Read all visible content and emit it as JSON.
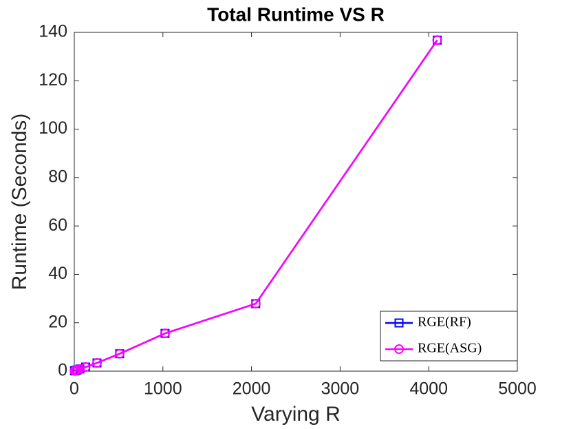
{
  "chart_data": {
    "type": "line",
    "title": "Total Runtime VS R",
    "x_label": "Varying R",
    "y_label": "Runtime (Seconds)",
    "x": [
      2,
      4,
      8,
      16,
      32,
      64,
      128,
      256,
      512,
      1024,
      2048,
      4096
    ],
    "series": [
      {
        "name": "RGE(RF)",
        "color": "#0000ff",
        "marker": "square",
        "values": [
          0.1,
          0.15,
          0.2,
          0.3,
          0.5,
          0.9,
          1.7,
          3.4,
          7.2,
          15.6,
          27.9,
          136.8
        ]
      },
      {
        "name": "RGE(ASG)",
        "color": "#ff00ff",
        "marker": "circle",
        "values": [
          0.1,
          0.15,
          0.2,
          0.3,
          0.5,
          0.9,
          1.7,
          3.4,
          7.2,
          15.6,
          27.9,
          136.8
        ]
      }
    ],
    "xlim": [
      0,
      5000
    ],
    "xticks": [
      0,
      1000,
      2000,
      3000,
      4000,
      5000
    ],
    "ylim": [
      0,
      140
    ],
    "yticks": [
      0,
      20,
      40,
      60,
      80,
      100,
      120,
      140
    ],
    "grid": false,
    "legend": "southeast"
  }
}
